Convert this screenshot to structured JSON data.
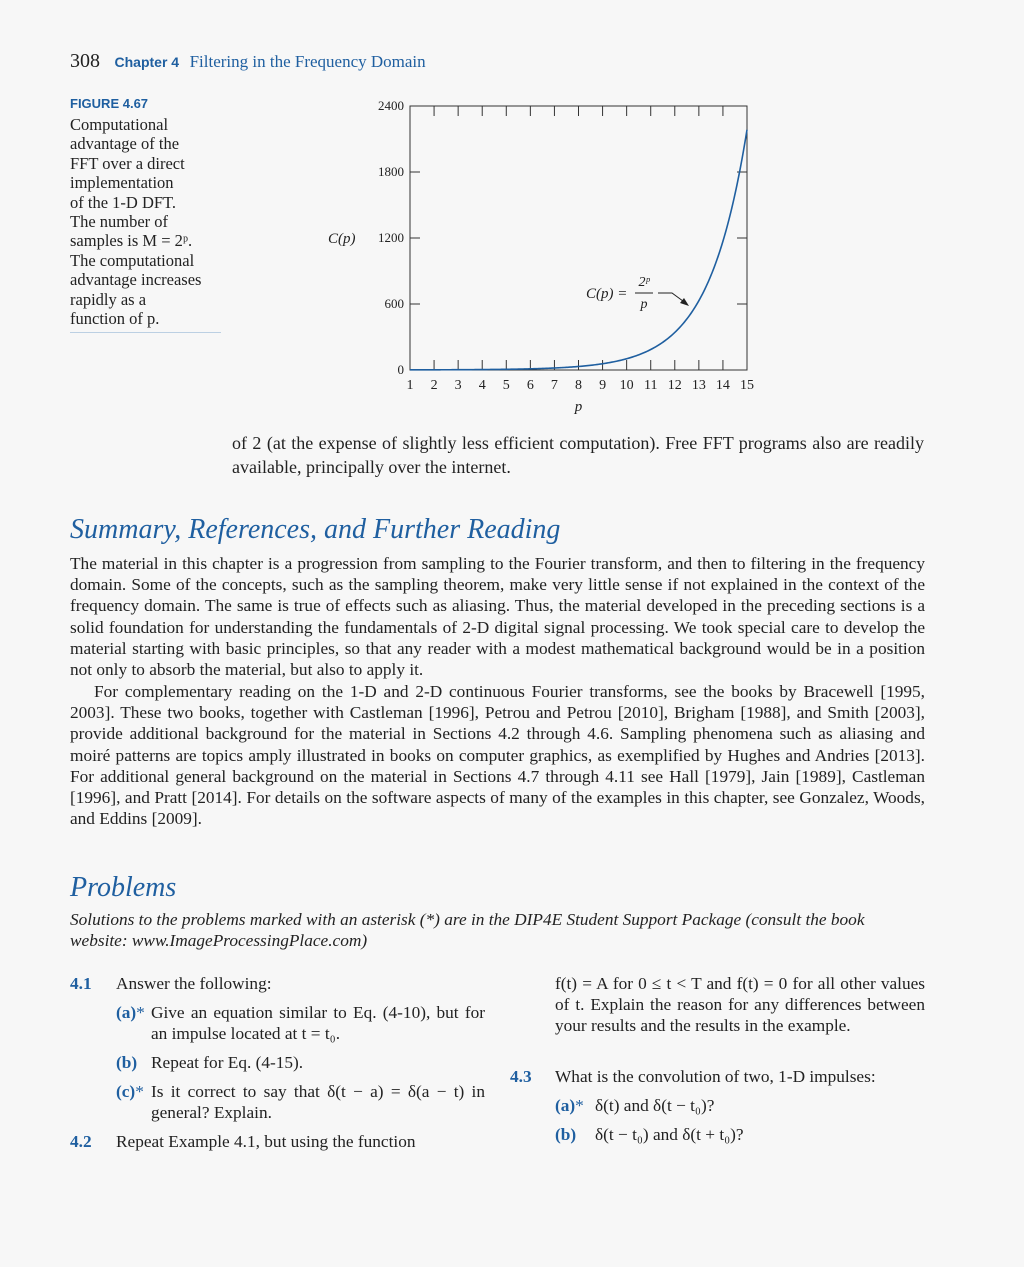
{
  "header": {
    "page_number": "308",
    "chapter_label": "Chapter 4",
    "chapter_title": "Filtering in the Frequency Domain"
  },
  "figure": {
    "label": "FIGURE 4.67",
    "caption_lines": [
      "Computational",
      "advantage of the",
      "FFT over a direct",
      "implementation",
      "of the 1-D DFT.",
      "The number of",
      "samples is M = 2ᵖ.",
      "The computational",
      "advantage increases",
      "rapidly as a",
      "function of p."
    ]
  },
  "chart_data": {
    "type": "line",
    "ylabel": "C(p)",
    "xlabel": "p",
    "formula_lhs": "C(p) =",
    "formula_num": "2ᵖ",
    "formula_den": "p",
    "x": [
      1,
      2,
      3,
      4,
      5,
      6,
      7,
      8,
      9,
      10,
      11,
      12,
      13,
      14,
      15
    ],
    "x_tick_labels": [
      "1",
      "2",
      "3",
      "4",
      "5",
      "6",
      "7",
      "8",
      "9",
      "10",
      "11",
      "12",
      "13",
      "14",
      "15"
    ],
    "y_ticks": [
      0,
      600,
      1200,
      1800,
      2400
    ],
    "y_tick_labels": [
      "0",
      "600",
      "1200",
      "1800",
      "2400"
    ],
    "xlim": [
      1,
      15
    ],
    "ylim": [
      0,
      2400
    ],
    "series": [
      {
        "values": [
          2,
          2,
          2.67,
          4,
          6.4,
          10.67,
          18.29,
          32,
          56.89,
          102.4,
          186.18,
          341.33,
          630.15,
          1170.29,
          2184.53
        ]
      }
    ],
    "line_color": "#1f5fa0",
    "grid": false
  },
  "continuation": {
    "text": "of 2 (at the expense of slightly less efficient computation). Free FFT programs also are readily available, principally over the internet."
  },
  "summary": {
    "heading": "Summary, References, and Further Reading",
    "p1": "The material in this chapter is a progression from sampling to the Fourier transform, and then to filtering in the frequency domain. Some of the concepts, such as the sampling theorem, make very little sense if not explained in the context of the frequency domain. The same is true of effects such as aliasing. Thus, the material developed in the preceding sections is a solid foundation for understanding the fundamentals of 2-D digital signal processing. We took special care to develop the material starting with basic principles, so that any reader with a modest mathematical background would be in a position not only to absorb the material, but also to apply it.",
    "p2": "For complementary reading on the 1-D and 2-D continuous Fourier transforms, see the books by Bracewell [1995, 2003]. These two books, together with Castleman [1996], Petrou and Petrou [2010], Brigham [1988], and Smith [2003], provide additional background for the material in Sections 4.2 through 4.6. Sampling phenomena such as aliasing and moiré patterns are topics amply illustrated in books on computer graphics, as exemplified by Hughes and Andries [2013]. For additional general background on the material in Sections 4.7 through 4.11 see Hall [1979], Jain [1989], Castleman [1996], and Pratt [2014]. For details on the software aspects of many of the examples in this chapter, see Gonzalez, Woods, and Eddins [2009]."
  },
  "problems": {
    "heading": "Problems",
    "note": "Solutions to the problems marked with an asterisk (*) are in the DIP4E Student Support Package (consult the book website: www.ImageProcessingPlace.com)",
    "p41": {
      "num": "4.1",
      "text": "Answer the following:",
      "a_label": "(a)",
      "a_text": "Give an equation similar to Eq. (4-10), but for an impulse located at t = t₀.",
      "b_label": "(b)",
      "b_text": "Repeat for Eq. (4-15).",
      "c_label": "(c)",
      "c_text": "Is it correct to say that δ(t − a) = δ(a − t) in general? Explain."
    },
    "p42": {
      "num": "4.2",
      "text": "Repeat Example 4.1, but using the function",
      "cont": "f(t) = A for 0 ≤ t < T and f(t) = 0 for all other values of t. Explain the reason for any differences between your results and the results in the example."
    },
    "p43": {
      "num": "4.3",
      "text": "What is the convolution of two, 1-D impulses:",
      "a_label": "(a)",
      "a_text": "δ(t) and δ(t − t₀)?",
      "b_label": "(b)",
      "b_text": "δ(t − t₀) and δ(t + t₀)?"
    },
    "asterisk": "*"
  }
}
